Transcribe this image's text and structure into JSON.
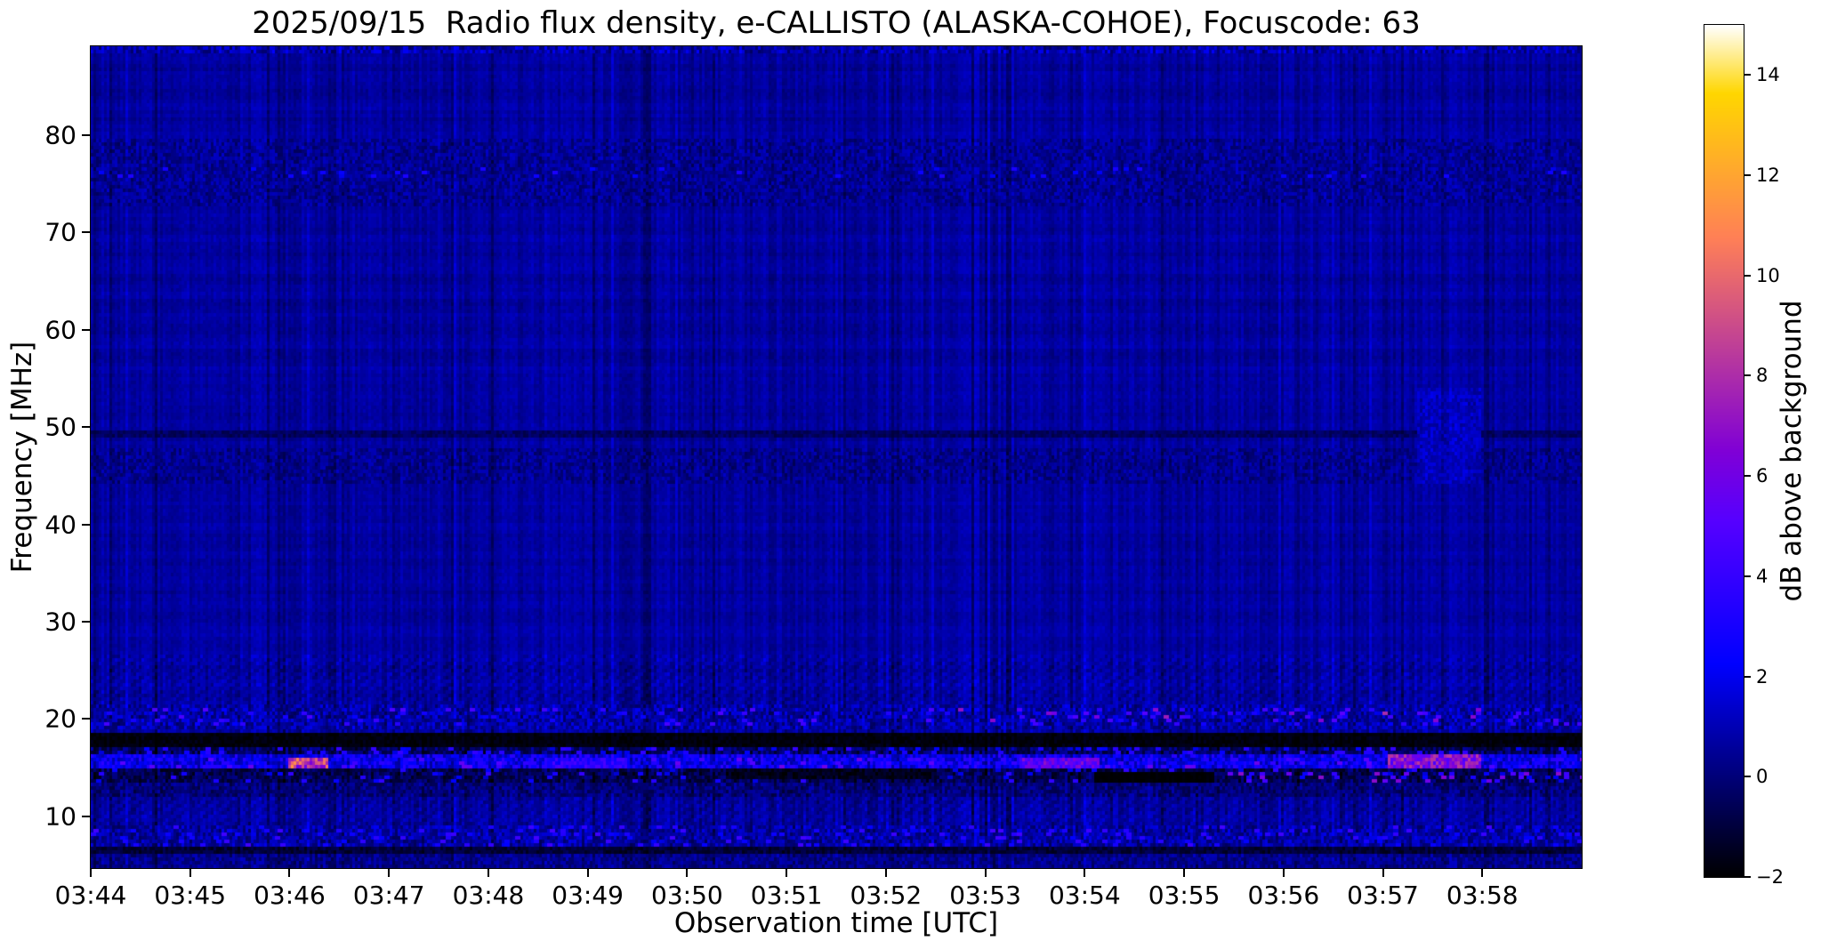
{
  "chart_data": {
    "type": "heatmap",
    "title": "2025/09/15  Radio flux density, e-CALLISTO (ALASKA-COHOE), Focuscode: 63",
    "xlabel": "Observation time [UTC]",
    "ylabel": "Frequency [MHz]",
    "x_ticks": [
      "03:44",
      "03:45",
      "03:46",
      "03:47",
      "03:48",
      "03:49",
      "03:50",
      "03:51",
      "03:52",
      "03:53",
      "03:54",
      "03:55",
      "03:56",
      "03:57",
      "03:58"
    ],
    "x_start": "03:44",
    "x_total_minutes": 15,
    "y_ticks": [
      10,
      20,
      30,
      40,
      50,
      60,
      70,
      80
    ],
    "ylim": [
      4.7,
      89.1
    ],
    "grid": false,
    "background_db": 0.65,
    "colorbar": {
      "label": "dB above background",
      "ticks": [
        -2,
        0,
        2,
        4,
        6,
        8,
        10,
        12,
        14
      ],
      "vmin": -2,
      "vmax": 15,
      "colormap": "gnuplot2"
    },
    "features": [
      {
        "name": "top-edge-speckle",
        "t": [
          0,
          15
        ],
        "f": [
          88.2,
          89.1
        ],
        "kind": "speckle",
        "level": 0.9,
        "noise": 1.2
      },
      {
        "name": "upper-texture-75MHz",
        "t": [
          0,
          15
        ],
        "f": [
          72.5,
          79.5
        ],
        "kind": "speckle",
        "level": 0.45,
        "noise": 0.8
      },
      {
        "name": "bright-dashes-76MHz",
        "t": [
          0,
          15
        ],
        "f": [
          75.6,
          76.6
        ],
        "kind": "dots",
        "dot_prob": 0.03,
        "dot_level": [
          1.8,
          3.2
        ]
      },
      {
        "name": "faint-texture-46MHz",
        "t": [
          0,
          15
        ],
        "f": [
          44.2,
          47.8
        ],
        "kind": "speckle",
        "level": 0.35,
        "noise": 0.75
      },
      {
        "name": "faint-dark-line-49MHz",
        "t": [
          0,
          15
        ],
        "f": [
          48.8,
          49.6
        ],
        "kind": "dark",
        "level": -0.4,
        "noise": 0.45
      },
      {
        "name": "bright-patch-right-50MHz",
        "t": [
          13.35,
          14.0
        ],
        "f": [
          44.0,
          54.0
        ],
        "kind": "speckle",
        "level": 1.1,
        "noise": 0.7
      },
      {
        "name": "speckle-band-20MHz",
        "t": [
          0,
          15
        ],
        "f": [
          18.9,
          21.5
        ],
        "kind": "speckle",
        "level": 0.8,
        "noise": 1.2
      },
      {
        "name": "blue-dots-20MHz",
        "t": [
          0,
          15
        ],
        "f": [
          19.4,
          21.2
        ],
        "kind": "dots",
        "dot_prob": 0.05,
        "dot_level": [
          2.2,
          5.0
        ]
      },
      {
        "name": "magenta-dots-20MHz-right",
        "t": [
          8.2,
          15
        ],
        "f": [
          19.6,
          21.0
        ],
        "kind": "dots",
        "dot_prob": 0.028,
        "dot_level": [
          4.5,
          8.0
        ]
      },
      {
        "name": "black-band-18MHz",
        "t": [
          0,
          15
        ],
        "f": [
          17.3,
          18.6
        ],
        "kind": "dark",
        "level": -1.8,
        "noise": 0.3
      },
      {
        "name": "dash-row-17MHz",
        "t": [
          0,
          15
        ],
        "f": [
          16.4,
          17.3
        ],
        "kind": "speckle",
        "level": -0.4,
        "noise": 1.1
      },
      {
        "name": "dash-row-dots-17MHz",
        "t": [
          0,
          15
        ],
        "f": [
          16.4,
          17.3
        ],
        "kind": "dots",
        "dot_prob": 0.1,
        "dot_level": [
          1.5,
          4.0
        ]
      },
      {
        "name": "bright-band-15.5MHz",
        "t": [
          0,
          15
        ],
        "f": [
          14.9,
          16.4
        ],
        "kind": "speckle",
        "level": 2.1,
        "noise": 1.5
      },
      {
        "name": "bright-dots-15.5MHz",
        "t": [
          0,
          15
        ],
        "f": [
          15.0,
          16.2
        ],
        "kind": "dots",
        "dot_prob": 0.07,
        "dot_level": [
          3.0,
          6.0
        ]
      },
      {
        "name": "hot-spot-0346",
        "t": [
          2.0,
          2.4
        ],
        "f": [
          15.1,
          16.0
        ],
        "kind": "bright",
        "level": 8.5,
        "noise": 3.0
      },
      {
        "name": "bright-segment-0349",
        "t": [
          4.6,
          5.4
        ],
        "f": [
          15.0,
          16.1
        ],
        "kind": "bright",
        "level": 3.6,
        "noise": 1.2
      },
      {
        "name": "pink-streak-0353",
        "t": [
          9.35,
          10.15
        ],
        "f": [
          15.1,
          16.2
        ],
        "kind": "bright",
        "level": 5.5,
        "noise": 1.6
      },
      {
        "name": "pink-streak-0357",
        "t": [
          13.05,
          14.0
        ],
        "f": [
          15.0,
          16.3
        ],
        "kind": "bright",
        "level": 6.5,
        "noise": 2.0
      },
      {
        "name": "dark-band-14MHz",
        "t": [
          0,
          15
        ],
        "f": [
          13.4,
          14.9
        ],
        "kind": "speckle",
        "level": -0.6,
        "noise": 1.0
      },
      {
        "name": "blue-dots-14MHz",
        "t": [
          0,
          15
        ],
        "f": [
          13.5,
          14.8
        ],
        "kind": "dots",
        "dot_prob": 0.05,
        "dot_level": [
          1.5,
          4.0
        ]
      },
      {
        "name": "dark-segment-0350",
        "t": [
          6.4,
          8.5
        ],
        "f": [
          13.8,
          14.8
        ],
        "kind": "dark",
        "level": -1.5,
        "noise": 0.5
      },
      {
        "name": "black-bar-0354",
        "t": [
          10.1,
          11.3
        ],
        "f": [
          13.5,
          14.6
        ],
        "kind": "dark",
        "level": -1.95,
        "noise": 0.1
      },
      {
        "name": "magenta-dots-14MHz-right",
        "t": [
          11.4,
          15
        ],
        "f": [
          13.5,
          14.7
        ],
        "kind": "dots",
        "dot_prob": 0.06,
        "dot_level": [
          3.5,
          7.0
        ]
      },
      {
        "name": "band-12.5MHz",
        "t": [
          0,
          15
        ],
        "f": [
          11.9,
          13.4
        ],
        "kind": "speckle",
        "level": 0.0,
        "noise": 0.9
      },
      {
        "name": "band-8MHz",
        "t": [
          0,
          15
        ],
        "f": [
          6.9,
          9.1
        ],
        "kind": "speckle",
        "level": 0.7,
        "noise": 1.1
      },
      {
        "name": "dots-8MHz",
        "t": [
          0,
          15
        ],
        "f": [
          7.0,
          9.0
        ],
        "kind": "dots",
        "dot_prob": 0.06,
        "dot_level": [
          2.0,
          4.5
        ]
      },
      {
        "name": "dark-line-6.5MHz",
        "t": [
          0,
          15
        ],
        "f": [
          6.2,
          6.9
        ],
        "kind": "dark",
        "level": -1.1,
        "noise": 0.55
      },
      {
        "name": "bottom-zone",
        "t": [
          0,
          15
        ],
        "f": [
          4.7,
          6.2
        ],
        "kind": "speckle",
        "level": 0.3,
        "noise": 0.8
      }
    ]
  }
}
